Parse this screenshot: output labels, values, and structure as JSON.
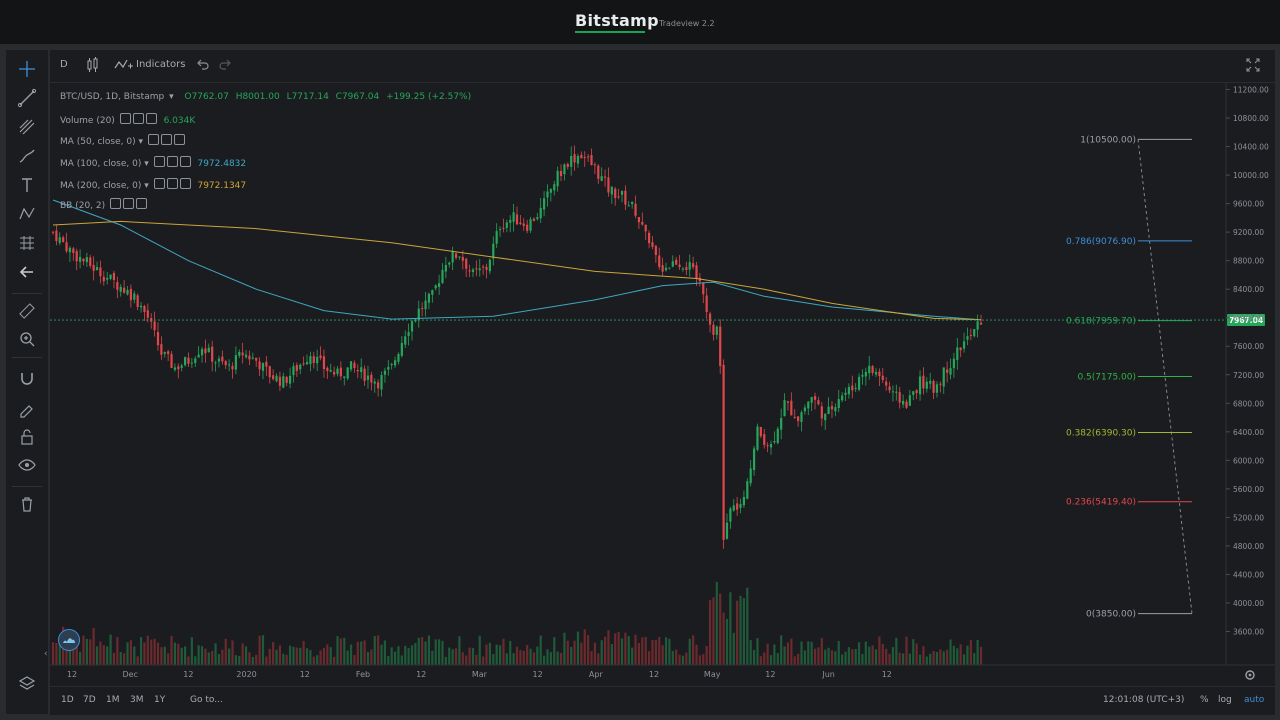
{
  "header": {
    "brand": "Bitstamp",
    "subtitle": "Tradeview 2.2"
  },
  "toolbar": {
    "interval": "D",
    "indicators_label": "Indicators"
  },
  "legend": {
    "symbol": "BTC/USD, 1D, Bitstamp",
    "open": "O7762.07",
    "high": "H8001.00",
    "low": "L7717.14",
    "close": "C7967.04",
    "change": "+199.25 (+2.57%)",
    "volume_label": "Volume (20)",
    "volume_value": "6.034K",
    "ma50_label": "MA (50, close, 0)",
    "ma100_label": "MA (100, close, 0)",
    "ma100_value": "7972.4832",
    "ma200_label": "MA (200, close, 0)",
    "ma200_value": "7972.1347",
    "bb_label": "BB (20, 2)"
  },
  "bottom": {
    "ranges": [
      "1D",
      "7D",
      "1M",
      "3M",
      "1Y"
    ],
    "goto": "Go to...",
    "time": "12:01:08 (UTC+3)",
    "percent": "%",
    "log": "log",
    "auto": "auto"
  },
  "colors": {
    "up": "#26a65b",
    "down": "#e0474c",
    "ma100": "#3ea8c2",
    "ma200": "#c9a63a",
    "price_tag": "#26a65b"
  },
  "chart_data": {
    "type": "candlestick",
    "price_axis": {
      "ticks": [
        11200,
        10800,
        10400,
        10000,
        9600,
        9200,
        8800,
        8400,
        8000,
        7600,
        7200,
        6800,
        6400,
        6000,
        5600,
        5200,
        4800,
        4400,
        4000,
        3600
      ]
    },
    "last_price": "7967.04",
    "time_axis": [
      "12",
      "Dec",
      "12",
      "2020",
      "12",
      "Feb",
      "12",
      "Mar",
      "12",
      "Apr",
      "12",
      "May",
      "12",
      "Jun",
      "12"
    ],
    "fib_levels": [
      {
        "label": "1(10500.00)",
        "price": 10500,
        "color": "#9aa0a8"
      },
      {
        "label": "0.786(9076.90)",
        "price": 9076.9,
        "color": "#3e8fd6"
      },
      {
        "label": "0.618(7959.70)",
        "price": 7959.7,
        "color": "#26a65b"
      },
      {
        "label": "0.5(7175.00)",
        "price": 7175,
        "color": "#2fb344"
      },
      {
        "label": "0.382(6390.30)",
        "price": 6390.3,
        "color": "#a6b530"
      },
      {
        "label": "0.236(5419.40)",
        "price": 5419.4,
        "color": "#e0474c"
      },
      {
        "label": "0(3850.00)",
        "price": 3850,
        "color": "#9aa0a8"
      }
    ],
    "close_path": [
      [
        0,
        9200
      ],
      [
        6,
        8900
      ],
      [
        12,
        8700
      ],
      [
        18,
        8500
      ],
      [
        24,
        8300
      ],
      [
        28,
        8000
      ],
      [
        32,
        7500
      ],
      [
        36,
        7300
      ],
      [
        40,
        7400
      ],
      [
        44,
        7600
      ],
      [
        48,
        7400
      ],
      [
        52,
        7300
      ],
      [
        56,
        7500
      ],
      [
        60,
        7400
      ],
      [
        64,
        7200
      ],
      [
        68,
        7100
      ],
      [
        72,
        7300
      ],
      [
        76,
        7500
      ],
      [
        80,
        7300
      ],
      [
        84,
        7200
      ],
      [
        88,
        7300
      ],
      [
        92,
        7200
      ],
      [
        96,
        7100
      ],
      [
        100,
        7300
      ],
      [
        104,
        7800
      ],
      [
        108,
        8100
      ],
      [
        112,
        8300
      ],
      [
        116,
        8800
      ],
      [
        120,
        8900
      ],
      [
        124,
        8600
      ],
      [
        128,
        8700
      ],
      [
        132,
        9300
      ],
      [
        136,
        9400
      ],
      [
        140,
        9300
      ],
      [
        144,
        9500
      ],
      [
        148,
        9900
      ],
      [
        152,
        10200
      ],
      [
        156,
        10300
      ],
      [
        160,
        10100
      ],
      [
        164,
        9800
      ],
      [
        168,
        9700
      ],
      [
        172,
        9500
      ],
      [
        176,
        9000
      ],
      [
        180,
        8700
      ],
      [
        184,
        8800
      ],
      [
        188,
        8700
      ],
      [
        192,
        8400
      ],
      [
        194,
        7900
      ],
      [
        196,
        7800
      ],
      [
        197,
        7300
      ],
      [
        198,
        4900
      ],
      [
        200,
        5300
      ],
      [
        204,
        5400
      ],
      [
        208,
        6400
      ],
      [
        212,
        6200
      ],
      [
        216,
        6800
      ],
      [
        220,
        6600
      ],
      [
        224,
        6900
      ],
      [
        228,
        6600
      ],
      [
        232,
        6900
      ],
      [
        236,
        7000
      ],
      [
        240,
        7300
      ],
      [
        244,
        7200
      ],
      [
        248,
        6900
      ],
      [
        252,
        6800
      ],
      [
        256,
        7100
      ],
      [
        260,
        7000
      ],
      [
        264,
        7300
      ],
      [
        268,
        7600
      ],
      [
        272,
        7800
      ],
      [
        274,
        7967
      ]
    ],
    "ma100_path": [
      [
        0,
        9650
      ],
      [
        20,
        9300
      ],
      [
        40,
        8800
      ],
      [
        60,
        8400
      ],
      [
        80,
        8100
      ],
      [
        100,
        7980
      ],
      [
        130,
        8020
      ],
      [
        160,
        8250
      ],
      [
        180,
        8450
      ],
      [
        195,
        8500
      ],
      [
        210,
        8300
      ],
      [
        230,
        8150
      ],
      [
        260,
        8020
      ],
      [
        274,
        7972
      ]
    ],
    "ma200_path": [
      [
        0,
        9300
      ],
      [
        20,
        9350
      ],
      [
        40,
        9300
      ],
      [
        60,
        9250
      ],
      [
        80,
        9150
      ],
      [
        100,
        9050
      ],
      [
        130,
        8850
      ],
      [
        160,
        8650
      ],
      [
        190,
        8550
      ],
      [
        210,
        8400
      ],
      [
        230,
        8200
      ],
      [
        260,
        7990
      ],
      [
        274,
        7972
      ]
    ]
  }
}
